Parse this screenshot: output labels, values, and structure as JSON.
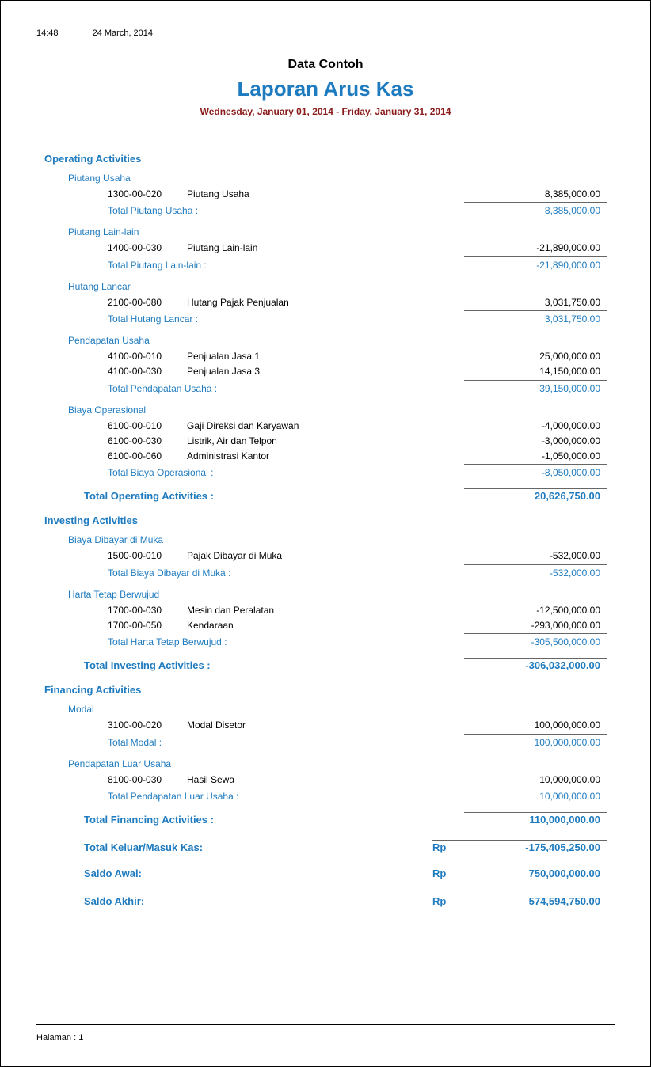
{
  "meta": {
    "time": "14:48",
    "date": "24 March, 2014"
  },
  "header": {
    "company": "Data Contoh",
    "title": "Laporan Arus Kas",
    "date_range": "Wednesday, January 01, 2014 - Friday, January 31, 2014"
  },
  "colors": {
    "accent": "#1f7bbf",
    "date_range": "#8b1a1a",
    "text": "#000000"
  },
  "sections": [
    {
      "title": "Operating Activities",
      "groups": [
        {
          "name": "Piutang Usaha",
          "items": [
            {
              "code": "1300-00-020",
              "desc": "Piutang Usaha",
              "amount": "8,385,000.00"
            }
          ],
          "total_label": "Total Piutang Usaha :",
          "total_amount": "8,385,000.00"
        },
        {
          "name": "Piutang Lain-lain",
          "items": [
            {
              "code": "1400-00-030",
              "desc": "Piutang Lain-lain",
              "amount": "-21,890,000.00"
            }
          ],
          "total_label": "Total Piutang Lain-lain :",
          "total_amount": "-21,890,000.00"
        },
        {
          "name": "Hutang Lancar",
          "items": [
            {
              "code": "2100-00-080",
              "desc": "Hutang Pajak Penjualan",
              "amount": "3,031,750.00"
            }
          ],
          "total_label": "Total Hutang Lancar :",
          "total_amount": "3,031,750.00"
        },
        {
          "name": "Pendapatan Usaha",
          "items": [
            {
              "code": "4100-00-010",
              "desc": "Penjualan Jasa 1",
              "amount": "25,000,000.00"
            },
            {
              "code": "4100-00-030",
              "desc": "Penjualan Jasa 3",
              "amount": "14,150,000.00"
            }
          ],
          "total_label": "Total Pendapatan Usaha :",
          "total_amount": "39,150,000.00"
        },
        {
          "name": "Biaya Operasional",
          "items": [
            {
              "code": "6100-00-010",
              "desc": "Gaji Direksi dan Karyawan",
              "amount": "-4,000,000.00"
            },
            {
              "code": "6100-00-030",
              "desc": "Listrik, Air dan Telpon",
              "amount": "-3,000,000.00"
            },
            {
              "code": "6100-00-060",
              "desc": "Administrasi Kantor",
              "amount": "-1,050,000.00"
            }
          ],
          "total_label": "Total Biaya Operasional :",
          "total_amount": "-8,050,000.00"
        }
      ],
      "total_label": "Total Operating Activities :",
      "total_amount": "20,626,750.00"
    },
    {
      "title": "Investing Activities",
      "groups": [
        {
          "name": "Biaya Dibayar di Muka",
          "items": [
            {
              "code": "1500-00-010",
              "desc": "Pajak Dibayar di Muka",
              "amount": "-532,000.00"
            }
          ],
          "total_label": "Total Biaya Dibayar di Muka :",
          "total_amount": "-532,000.00"
        },
        {
          "name": "Harta Tetap Berwujud",
          "items": [
            {
              "code": "1700-00-030",
              "desc": "Mesin dan Peralatan",
              "amount": "-12,500,000.00"
            },
            {
              "code": "1700-00-050",
              "desc": "Kendaraan",
              "amount": "-293,000,000.00"
            }
          ],
          "total_label": "Total Harta Tetap Berwujud :",
          "total_amount": "-305,500,000.00"
        }
      ],
      "total_label": "Total Investing Activities :",
      "total_amount": "-306,032,000.00"
    },
    {
      "title": "Financing Activities",
      "groups": [
        {
          "name": "Modal",
          "items": [
            {
              "code": "3100-00-020",
              "desc": "Modal Disetor",
              "amount": "100,000,000.00"
            }
          ],
          "total_label": "Total Modal :",
          "total_amount": "100,000,000.00"
        },
        {
          "name": "Pendapatan Luar Usaha",
          "items": [
            {
              "code": "8100-00-030",
              "desc": "Hasil Sewa",
              "amount": "10,000,000.00"
            }
          ],
          "total_label": "Total Pendapatan Luar Usaha :",
          "total_amount": "10,000,000.00"
        }
      ],
      "total_label": "Total Financing Activities :",
      "total_amount": "110,000,000.00"
    }
  ],
  "summary": [
    {
      "label": "Total Keluar/Masuk Kas:",
      "currency": "Rp",
      "amount": "-175,405,250.00",
      "bordered": true
    },
    {
      "label": "Saldo Awal:",
      "currency": "Rp",
      "amount": "750,000,000.00",
      "bordered": false
    },
    {
      "label": "Saldo Akhir:",
      "currency": "Rp",
      "amount": "574,594,750.00",
      "bordered": true
    }
  ],
  "footer": {
    "page_label": "Halaman : 1"
  }
}
